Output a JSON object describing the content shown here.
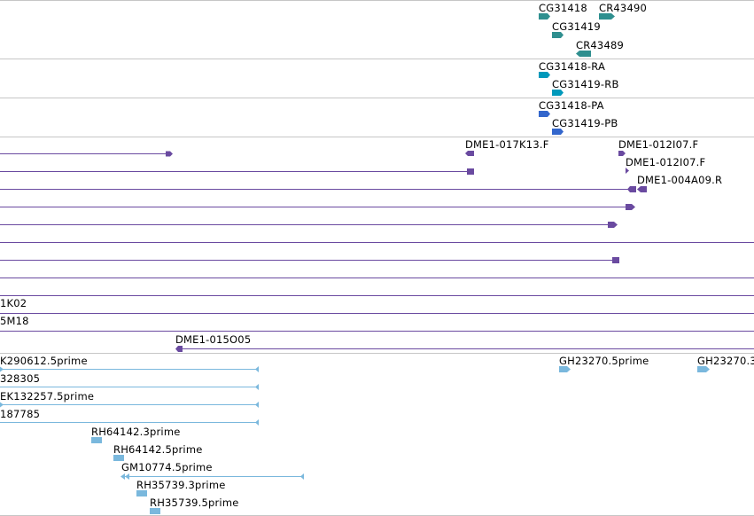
{
  "colors": {
    "gene": "#2f8f8f",
    "transcript": "#0099bb",
    "protein": "#3366cc",
    "clone": "#6a4aa0",
    "est": "#7ab8dd",
    "divider": "#c6c6c6"
  },
  "tracks": {
    "genes": [
      "CG31418",
      "CR43490",
      "CG31419",
      "CR43489"
    ],
    "transcripts": [
      "CG31418-RA",
      "CG31419-RB"
    ],
    "proteins": [
      "CG31418-PA",
      "CG31419-PB"
    ],
    "clones": [
      "DME1-017K13.F",
      "DME1-012I07.F",
      "DME1-012I07.F",
      "DME1-004A09.R",
      "1K02",
      "5M18",
      "DME1-015O05"
    ],
    "ests": [
      "K290612.5prime",
      "328305",
      "EK132257.5prime",
      "187785",
      "RH64142.3prime",
      "RH64142.5prime",
      "GM10774.5prime",
      "RH35739.3prime",
      "RH35739.5prime",
      "GH23270.5prime",
      "GH23270.3"
    ]
  }
}
